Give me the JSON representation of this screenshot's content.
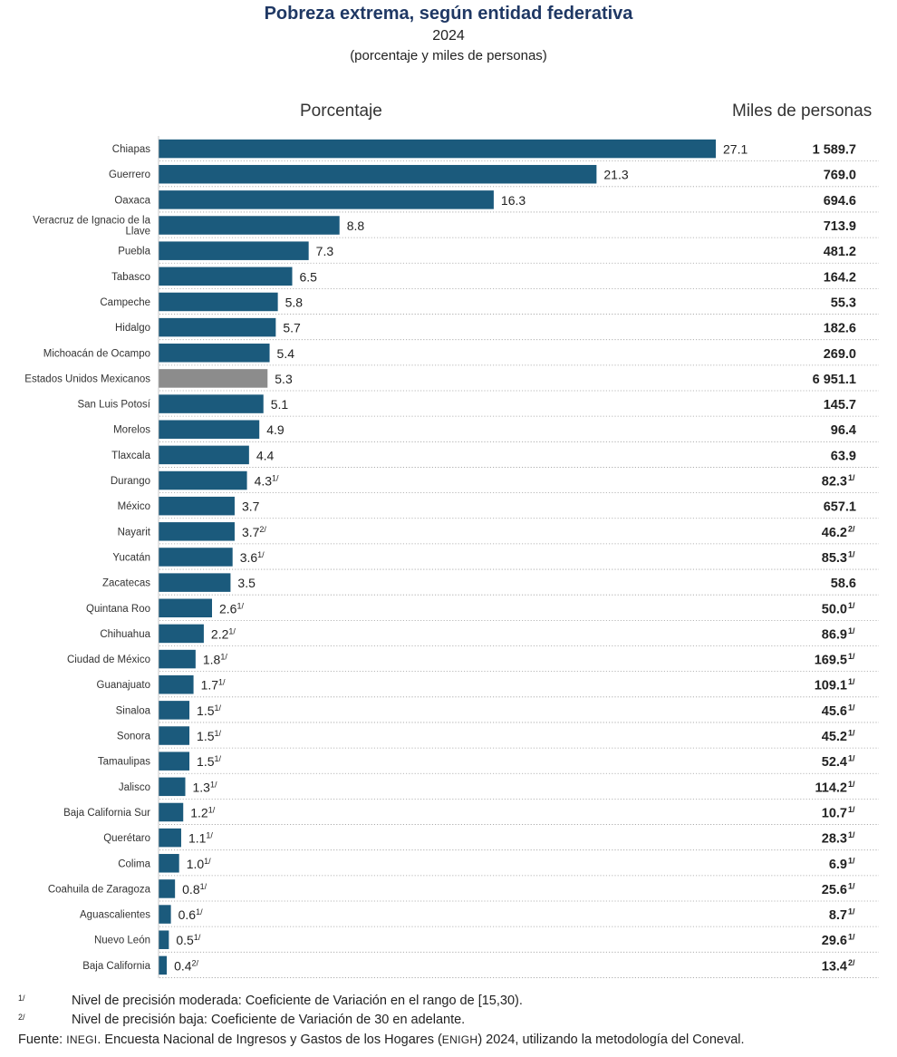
{
  "title": "Pobreza extrema, según entidad federativa",
  "year": "2024",
  "units_note": "(porcentaje y miles de personas)",
  "col_pct_label": "Porcentaje",
  "col_people_label": "Miles de personas",
  "colors": {
    "bar": "#1b5a7c",
    "national": "#8c8c8c",
    "title": "#1f3864"
  },
  "chart_data": {
    "type": "bar",
    "orientation": "horizontal",
    "xlim": [
      0,
      27.1
    ],
    "categories": [
      "Chiapas",
      "Guerrero",
      "Oaxaca",
      "Veracruz de Ignacio de la Llave",
      "Puebla",
      "Tabasco",
      "Campeche",
      "Hidalgo",
      "Michoacán de Ocampo",
      "Estados Unidos Mexicanos",
      "San Luis Potosí",
      "Morelos",
      "Tlaxcala",
      "Durango",
      "México",
      "Nayarit",
      "Yucatán",
      "Zacatecas",
      "Quintana Roo",
      "Chihuahua",
      "Ciudad de México",
      "Guanajuato",
      "Sinaloa",
      "Sonora",
      "Tamaulipas",
      "Jalisco",
      "Baja California Sur",
      "Querétaro",
      "Colima",
      "Coahuila de Zaragoza",
      "Aguascalientes",
      "Nuevo León",
      "Baja California"
    ],
    "values": [
      27.1,
      21.3,
      16.3,
      8.8,
      7.3,
      6.5,
      5.8,
      5.7,
      5.4,
      5.3,
      5.1,
      4.9,
      4.4,
      4.3,
      3.7,
      3.7,
      3.6,
      3.5,
      2.6,
      2.2,
      1.8,
      1.7,
      1.5,
      1.5,
      1.5,
      1.3,
      1.2,
      1.1,
      1.0,
      0.8,
      0.6,
      0.5,
      0.4
    ],
    "value_labels": [
      "27.1",
      "21.3",
      "16.3",
      "8.8",
      "7.3",
      "6.5",
      "5.8",
      "5.7",
      "5.4",
      "5.3",
      "5.1",
      "4.9",
      "4.4",
      "4.3",
      "3.7",
      "3.7",
      "3.6",
      "3.5",
      "2.6",
      "2.2",
      "1.8",
      "1.7",
      "1.5",
      "1.5",
      "1.5",
      "1.3",
      "1.2",
      "1.1",
      "1.0",
      "0.8",
      "0.6",
      "0.5",
      "0.4"
    ],
    "value_notes": [
      "",
      "",
      "",
      "",
      "",
      "",
      "",
      "",
      "",
      "",
      "",
      "",
      "",
      "1/",
      "",
      "2/",
      "1/",
      "",
      "1/",
      "1/",
      "1/",
      "1/",
      "1/",
      "1/",
      "1/",
      "1/",
      "1/",
      "1/",
      "1/",
      "1/",
      "1/",
      "1/",
      "2/"
    ],
    "thousands": [
      "1 589.7",
      "769.0",
      "694.6",
      "713.9",
      "481.2",
      "164.2",
      "55.3",
      "182.6",
      "269.0",
      "6 951.1",
      "145.7",
      "96.4",
      "63.9",
      "82.3",
      "657.1",
      "46.2",
      "85.3",
      "58.6",
      "50.0",
      "86.9",
      "169.5",
      "109.1",
      "45.6",
      "45.2",
      "52.4",
      "114.2",
      "10.7",
      "28.3",
      "6.9",
      "25.6",
      "8.7",
      "29.6",
      "13.4"
    ],
    "thousands_notes": [
      "",
      "",
      "",
      "",
      "",
      "",
      "",
      "",
      "",
      "",
      "",
      "",
      "",
      "1/",
      "",
      "2/",
      "1/",
      "",
      "1/",
      "1/",
      "1/",
      "1/",
      "1/",
      "1/",
      "1/",
      "1/",
      "1/",
      "1/",
      "1/",
      "1/",
      "1/",
      "1/",
      "2/"
    ],
    "highlight": "Estados Unidos Mexicanos"
  },
  "notes": [
    {
      "mark": "1/",
      "text": "Nivel de precisión moderada: Coeficiente de Variación en el rango de [15,30)."
    },
    {
      "mark": "2/",
      "text": "Nivel de precisión baja: Coeficiente de Variación de 30 en adelante."
    }
  ],
  "source": {
    "label": "Fuente:",
    "org": "INEGI",
    "text1": ". Encuesta Nacional de Ingresos y Gastos de los Hogares (",
    "abbr": "ENIGH",
    "text2": ") 2024, utilizando la metodología del Coneval."
  }
}
